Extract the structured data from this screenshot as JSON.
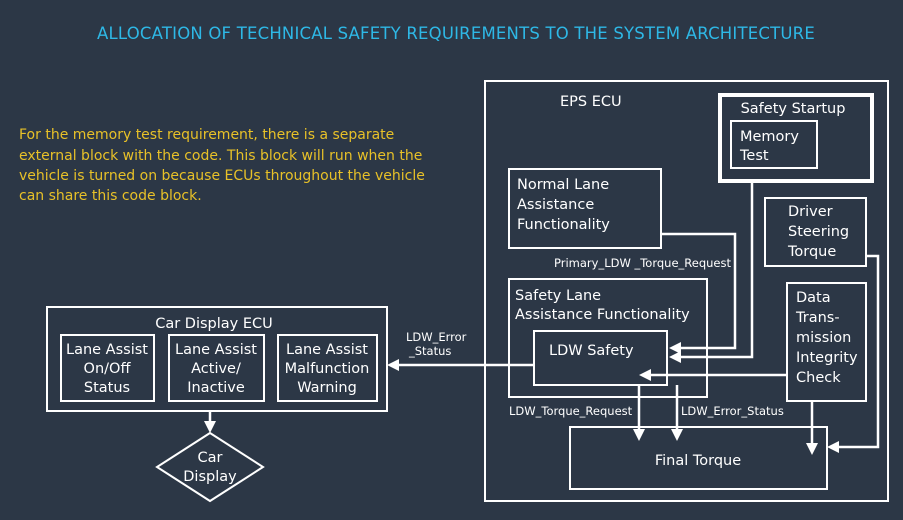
{
  "title": "ALLOCATION OF TECHNICAL SAFETY REQUIREMENTS TO THE SYSTEM ARCHITECTURE",
  "note": {
    "lines": [
      "For the memory test requirement, there is a separate",
      "external block with the code. This block will run when the",
      "vehicle is turned on because ECUs throughout the vehicle",
      "can share this code block."
    ]
  },
  "eps_ecu": {
    "label": "EPS ECU",
    "safety_startup": "Safety Startup",
    "memory_test": [
      "Memory",
      "Test"
    ],
    "normal_lane": [
      "Normal Lane",
      "Assistance",
      "Functionality"
    ],
    "driver_steering": [
      "Driver",
      "Steering",
      "Torque"
    ],
    "safety_lane": [
      "Safety Lane",
      "Assistance Functionality"
    ],
    "ldw_safety": "LDW Safety",
    "data_integrity": [
      "Data",
      "Trans-",
      "mission",
      "Integrity",
      "Check"
    ],
    "final_torque": "Final Torque"
  },
  "signals": {
    "primary_request": "Primary_LDW _Torque_Request",
    "ldw_torque_request": "LDW_Torque_Request",
    "ldw_error_status": "LDW_Error_Status",
    "ldw_error_status_wrapped": [
      "LDW_Error",
      "_Status"
    ]
  },
  "car_display_ecu": {
    "label": "Car Display ECU",
    "on_off": [
      "Lane Assist",
      "On/Off",
      "Status"
    ],
    "active": [
      "Lane Assist",
      "Active/",
      "Inactive"
    ],
    "malfunction": [
      "Lane Assist",
      "Malfunction",
      "Warning"
    ]
  },
  "car_display": [
    "Car",
    "Display"
  ]
}
